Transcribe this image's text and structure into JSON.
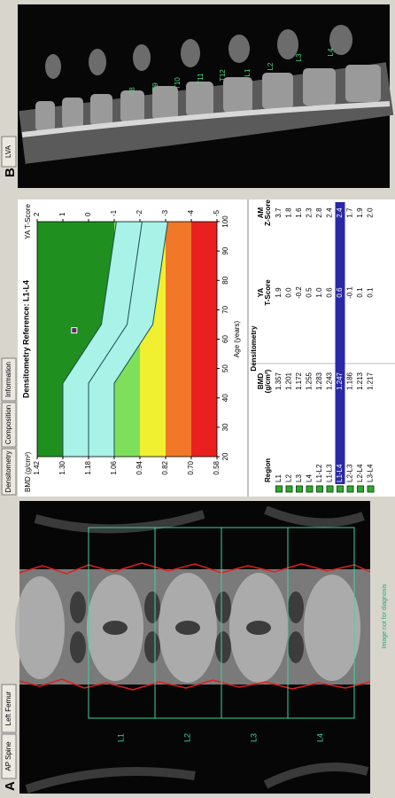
{
  "panel_a": {
    "label": "A",
    "tabs": [
      "AP Spine",
      "Left Femur"
    ],
    "regions": [
      "L1",
      "L2",
      "L3",
      "L4"
    ],
    "note": "Image not for diagnosis"
  },
  "densitometry": {
    "tabs": [
      "Densitometry",
      "Composition",
      "Information"
    ]
  },
  "chart_data": {
    "type": "line",
    "title": "Densitometry Reference: L1-L4",
    "y_label": "BMD (g/cm²)",
    "y2_label": "YA T-Score",
    "x_label": "Age (years)",
    "xlim": [
      20,
      100
    ],
    "xticks": [
      20,
      30,
      40,
      50,
      60,
      70,
      80,
      90,
      100
    ],
    "ylim": [
      0.58,
      1.42
    ],
    "yticks": [
      1.42,
      {
        "value": 1.3,
        "label": "1.30"
      },
      1.18,
      1.06,
      0.94,
      0.82,
      {
        "value": 0.7,
        "label": "0.70"
      },
      0.58
    ],
    "y2lim": [
      -5,
      2
    ],
    "y2ticks": [
      2,
      1,
      0,
      -1,
      -2,
      -3,
      -4,
      -5
    ],
    "zones": [
      {
        "from": 2,
        "to": -1,
        "color": "#1f8f1f"
      },
      {
        "from": -1,
        "to": -2,
        "color": "#7ee05a"
      },
      {
        "from": -2,
        "to": -3,
        "color": "#f0f030"
      },
      {
        "from": -3,
        "to": -4,
        "color": "#f07828"
      },
      {
        "from": -4,
        "to": -5,
        "color": "#e82020"
      }
    ],
    "reference": {
      "x": [
        20,
        45,
        65,
        100
      ],
      "upper": [
        1.3,
        1.3,
        1.12,
        1.05
      ],
      "mean": [
        1.18,
        1.18,
        1.0,
        0.93
      ],
      "lower": [
        1.06,
        1.06,
        0.88,
        0.81
      ],
      "band_color": "#a8f2e8",
      "line_color": "#1d4f4f"
    },
    "point": {
      "x": 63,
      "y": 1.247
    }
  },
  "table": {
    "title": "Densitometry",
    "headers": [
      [
        "Region"
      ],
      [
        "BMD",
        "(g/cm²)"
      ],
      [
        "YA",
        "T-Score"
      ],
      [
        "AM",
        "Z-Score"
      ]
    ],
    "rows": [
      [
        "L1",
        "1.357",
        "1.9",
        "3.7"
      ],
      [
        "L2",
        "1.201",
        "0.0",
        "1.8"
      ],
      [
        "L3",
        "1.172",
        "-0.2",
        "1.6"
      ],
      [
        "L4",
        "1.255",
        "0.5",
        "2.3"
      ],
      [
        "L1-L2",
        "1.283",
        "1.0",
        "2.8"
      ],
      [
        "L1-L3",
        "1.243",
        "0.6",
        "2.4"
      ],
      [
        "L1-L4",
        "1.247",
        "0.6",
        "2.4"
      ],
      [
        "L2-L3",
        "1.186",
        "-0.1",
        "1.7"
      ],
      [
        "L2-L4",
        "1.213",
        "0.1",
        "1.9"
      ],
      [
        "L3-L4",
        "1.217",
        "0.1",
        "2.0"
      ]
    ],
    "highlight": 6
  },
  "panel_b": {
    "label": "B",
    "tab": "LVA",
    "vertebrae": [
      "T8",
      "T9",
      "T10",
      "T11",
      "T12",
      "L1",
      "L2",
      "L3",
      "L4"
    ]
  }
}
